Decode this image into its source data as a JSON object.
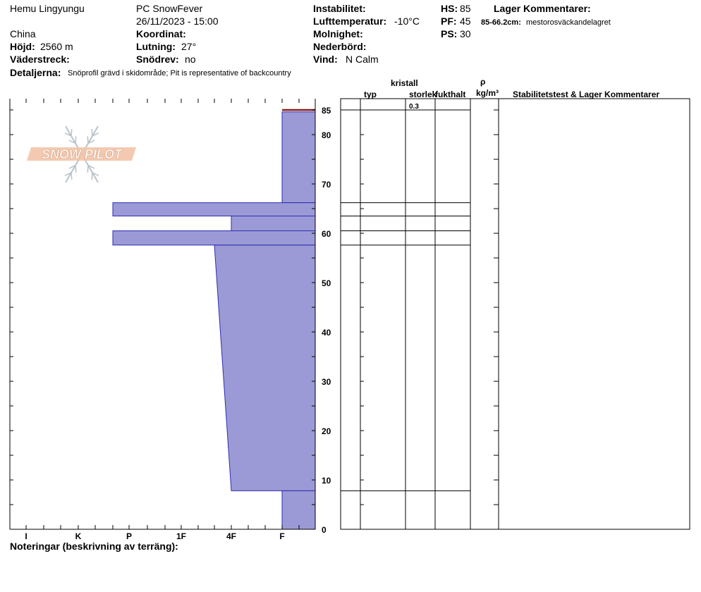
{
  "header": {
    "observer": "Hemu Lingyungu",
    "group": "PC SnowFever",
    "datetime": "26/11/2023 - 15:00",
    "country": "China",
    "hojd_label": "Höjd:",
    "hojd_value": "2560 m",
    "vaderstreck_label": "Väderstreck:",
    "detaljerna_label": "Detaljerna:",
    "detaljerna_value": "Snöprofil grävd i skidområde;  Pit is representative of backcountry",
    "koordinat_label": "Koordinat:",
    "lutning_label": "Lutning:",
    "lutning_value": "27°",
    "snodrev_label": "Snödrev:",
    "snodrev_value": "no",
    "instabilitet_label": "Instabilitet:",
    "lufttemp_label": "Lufttemperatur:",
    "lufttemp_value": "-10°C",
    "molnighet_label": "Molnighet:",
    "nederbord_label": "Nederbörd:",
    "vind_label": "Vind:",
    "vind_value": "N Calm",
    "hs_label": "HS:",
    "hs_value": "85",
    "pf_label": "PF:",
    "pf_value": "45",
    "ps_label": "PS:",
    "ps_value": "30",
    "lager_title": "Lager Kommentarer:",
    "lager_range": "85-66.2cm:",
    "lager_text": "mestorosväckandelagret"
  },
  "logo": {
    "text": "SNOW PILOT",
    "color": "#f2c4a8",
    "outline": "#b9c4cc"
  },
  "table": {
    "col_typ": "typ",
    "col_kristall": "kristall",
    "col_storlek": "storlek",
    "col_fukthalt": "fukthalt",
    "col_rho": "ρ",
    "col_rho_unit": "kg/m³",
    "col_stab": "Stabilitetstest & Lager Kommentarer",
    "size_value": "0.3"
  },
  "notes_label": "Noteringar (beskrivning av terräng):",
  "colors": {
    "fill": "#9b9ad6",
    "edge": "#2d2db0",
    "top_layer": "#8b1a1a"
  },
  "chart_data": {
    "type": "area",
    "title": "",
    "ylabel": "",
    "ylim": [
      0,
      87
    ],
    "y_ticks": [
      0,
      10,
      20,
      30,
      40,
      50,
      60,
      70,
      80,
      85
    ],
    "hardness_ticks": [
      "I",
      "K",
      "P",
      "1F",
      "4F",
      "F"
    ],
    "hardness_scale_note": "",
    "layers": [
      {
        "top": 85,
        "bottom": 84.6,
        "hardness_top": "F",
        "hardness_bottom": "F",
        "highlight": true
      },
      {
        "top": 84.6,
        "bottom": 66.2,
        "hardness_top": "F",
        "hardness_bottom": "F"
      },
      {
        "top": 66.2,
        "bottom": 63.5,
        "hardness_top": "K+",
        "hardness_bottom": "K+"
      },
      {
        "top": 63.5,
        "bottom": 60.5,
        "hardness_top": "4F",
        "hardness_bottom": "4F"
      },
      {
        "top": 60.5,
        "bottom": 57.6,
        "hardness_top": "K+",
        "hardness_bottom": "K+"
      },
      {
        "top": 57.6,
        "bottom": 7.8,
        "hardness_top": "1F-",
        "hardness_bottom": "4F"
      },
      {
        "top": 7.8,
        "bottom": 0,
        "hardness_top": "F",
        "hardness_bottom": "F"
      }
    ]
  }
}
